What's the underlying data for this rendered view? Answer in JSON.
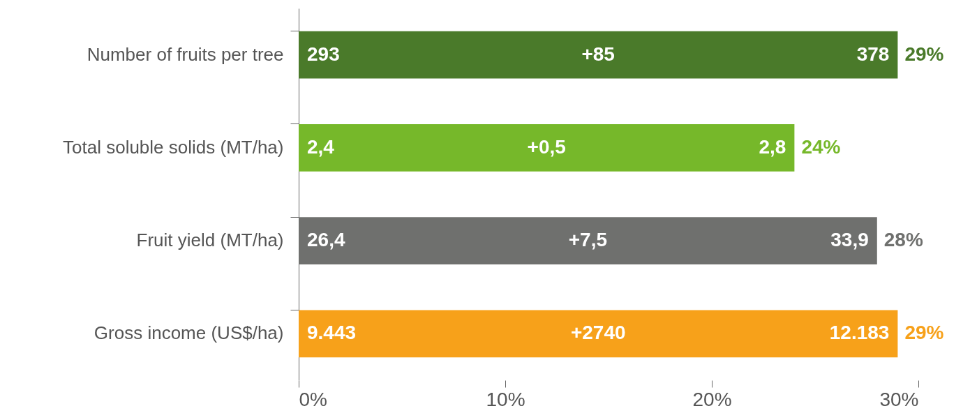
{
  "chart_data": {
    "type": "bar",
    "orientation": "horizontal",
    "categories": [
      "Number of fruits per tree",
      "Total soluble solids (MT/ha)",
      "Fruit yield (MT/ha)",
      "Gross income (US$/ha)"
    ],
    "values": [
      29,
      24,
      28,
      29
    ],
    "colors": [
      "#4a7a2a",
      "#76b82a",
      "#6f706e",
      "#f7a11a"
    ],
    "value_labels": [
      "29%",
      "24%",
      "28%",
      "29%"
    ],
    "xlim": [
      0,
      30
    ],
    "xticks": [
      {
        "value": 0,
        "label": "0%"
      },
      {
        "value": 10,
        "label": "10%"
      },
      {
        "value": 20,
        "label": "20%"
      },
      {
        "value": 30,
        "label": "30%"
      }
    ],
    "grid": false,
    "annotations": [
      "293",
      "+85",
      "378",
      "2,4",
      "+0,5",
      "2,8",
      "26,4",
      "+7,5",
      "33,9",
      "9.443",
      "+2740",
      "12.183"
    ]
  }
}
